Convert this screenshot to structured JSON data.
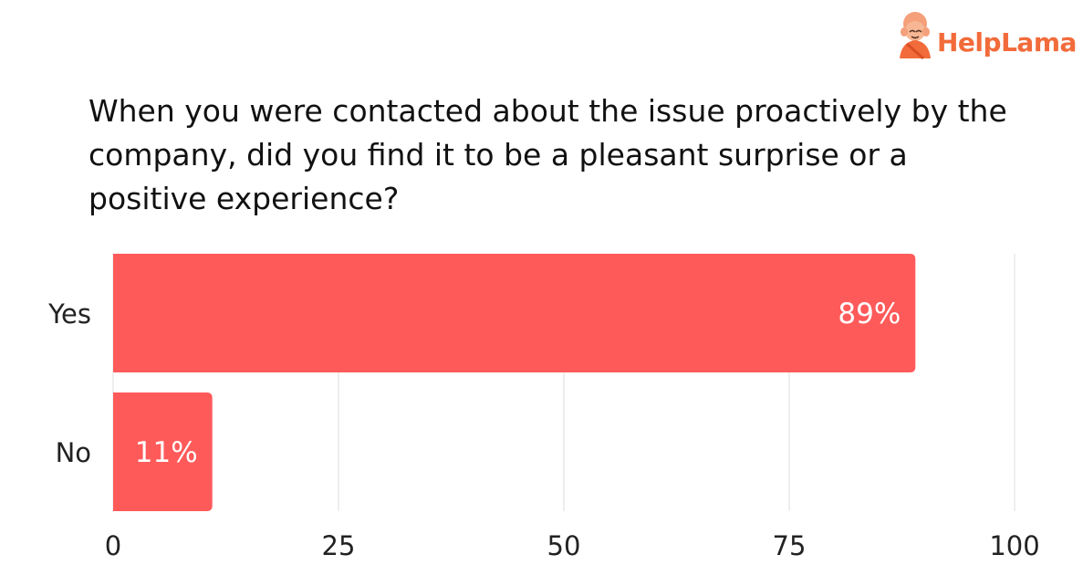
{
  "brand": {
    "name_part1": "Help",
    "name_part2": "Lama",
    "logo_color": "#f26b3a"
  },
  "chart_data": {
    "type": "bar",
    "orientation": "horizontal",
    "title_lines": [
      "When you were contacted about the issue proactively by the",
      "company, did you find it to be a pleasant surprise or a",
      "positive experience?"
    ],
    "categories": [
      "Yes",
      "No"
    ],
    "values": [
      89,
      11
    ],
    "data_labels": [
      "89%",
      "11%"
    ],
    "xlim": [
      0,
      100
    ],
    "x_ticks": [
      0,
      25,
      50,
      75,
      100
    ],
    "grid": true,
    "bar_color": "#ff5a5a"
  }
}
